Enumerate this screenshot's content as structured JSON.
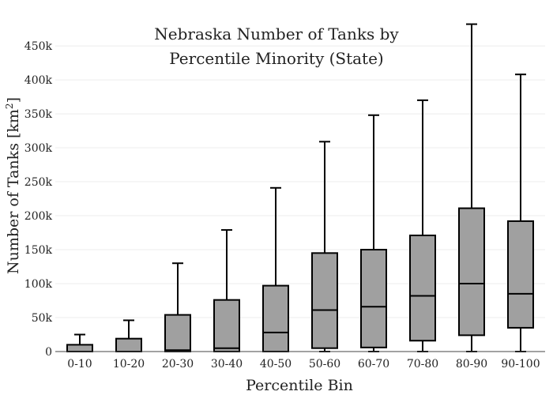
{
  "chart_data": {
    "type": "box",
    "title_lines": [
      "Nebraska Number of Tanks by",
      "Percentile Minority (State)"
    ],
    "xlabel": "Percentile Bin",
    "ylabel_main": "Number of Tanks  [km",
    "ylabel_sup": "2",
    "ylabel_end": "]",
    "ylim": [
      0,
      485000
    ],
    "yticks": [
      0,
      50000,
      100000,
      150000,
      200000,
      250000,
      300000,
      350000,
      400000,
      450000
    ],
    "ytick_labels": [
      "0",
      "50k",
      "100k",
      "150k",
      "200k",
      "250k",
      "300k",
      "350k",
      "400k",
      "450k"
    ],
    "grid": true,
    "box_color": "#a0a0a0",
    "categories": [
      "0-10",
      "10-20",
      "20-30",
      "30-40",
      "40-50",
      "50-60",
      "60-70",
      "70-80",
      "80-90",
      "90-100"
    ],
    "boxes": [
      {
        "min": 0,
        "q1": 0,
        "median": 0,
        "q3": 10000,
        "max": 25000
      },
      {
        "min": 0,
        "q1": 0,
        "median": 0,
        "q3": 19000,
        "max": 46000
      },
      {
        "min": 0,
        "q1": 0,
        "median": 2000,
        "q3": 54000,
        "max": 130000
      },
      {
        "min": 0,
        "q1": 0,
        "median": 5000,
        "q3": 76000,
        "max": 179000
      },
      {
        "min": 0,
        "q1": 0,
        "median": 28000,
        "q3": 97000,
        "max": 241000
      },
      {
        "min": 0,
        "q1": 5000,
        "median": 61000,
        "q3": 145000,
        "max": 309000
      },
      {
        "min": 0,
        "q1": 6000,
        "median": 66000,
        "q3": 150000,
        "max": 348000
      },
      {
        "min": 0,
        "q1": 16000,
        "median": 82000,
        "q3": 171000,
        "max": 370000
      },
      {
        "min": 0,
        "q1": 24000,
        "median": 100000,
        "q3": 211000,
        "max": 482000
      },
      {
        "min": 0,
        "q1": 35000,
        "median": 85000,
        "q3": 192000,
        "max": 408000
      }
    ]
  }
}
